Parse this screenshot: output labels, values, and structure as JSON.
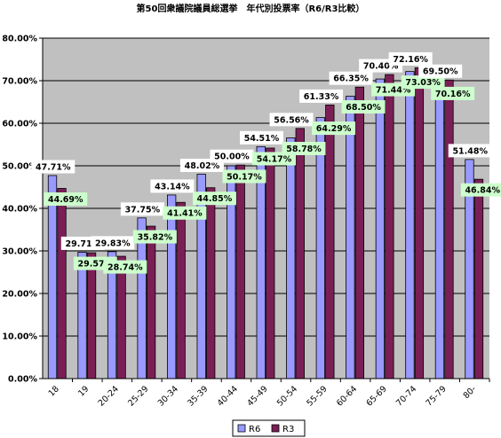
{
  "chart_data": {
    "type": "bar",
    "title": "第50回衆議院議員総選挙　年代別投票率（R6/R3比較）",
    "xlabel": "",
    "ylabel": "",
    "ylim": [
      0,
      80
    ],
    "y_ticks": [
      "0.00%",
      "10.00%",
      "20.00%",
      "30.00%",
      "40.00%",
      "50.00%",
      "60.00%",
      "70.00%",
      "80.00%"
    ],
    "grid": true,
    "legend_position": "bottom-center",
    "categories": [
      "18",
      "19",
      "20-24",
      "25-29",
      "30-34",
      "35-39",
      "40-44",
      "45-49",
      "50-54",
      "55-59",
      "60-64",
      "65-69",
      "70-74",
      "75-79",
      "80-"
    ],
    "series": [
      {
        "name": "R6",
        "color": "#9999ff",
        "label_bg": "#ffffff",
        "values": [
          47.71,
          29.71,
          29.83,
          37.75,
          43.14,
          48.02,
          50.0,
          54.51,
          56.56,
          61.33,
          66.35,
          70.4,
          72.16,
          69.5,
          51.48
        ],
        "labels": [
          "47.71%",
          "29.71%",
          "29.83%",
          "37.75%",
          "43.14%",
          "48.02%",
          "50.00%",
          "54.51%",
          "56.56%",
          "61.33%",
          "66.35%",
          "70.40%",
          "72.16%",
          "69.50%",
          "51.48%"
        ]
      },
      {
        "name": "R3",
        "color": "#7a1f55",
        "label_bg": "#ccffcc",
        "values": [
          44.69,
          29.57,
          28.74,
          35.82,
          41.41,
          44.85,
          50.17,
          54.17,
          58.78,
          64.29,
          68.5,
          71.44,
          73.03,
          70.16,
          46.84
        ],
        "labels": [
          "44.69%",
          "29.57%",
          "28.74%",
          "35.82%",
          "41.41%",
          "44.85%",
          "50.17%",
          "54.17%",
          "58.78%",
          "64.29%",
          "68.50%",
          "71.44%",
          "73.03%",
          "70.16%",
          "46.84%"
        ]
      }
    ]
  }
}
